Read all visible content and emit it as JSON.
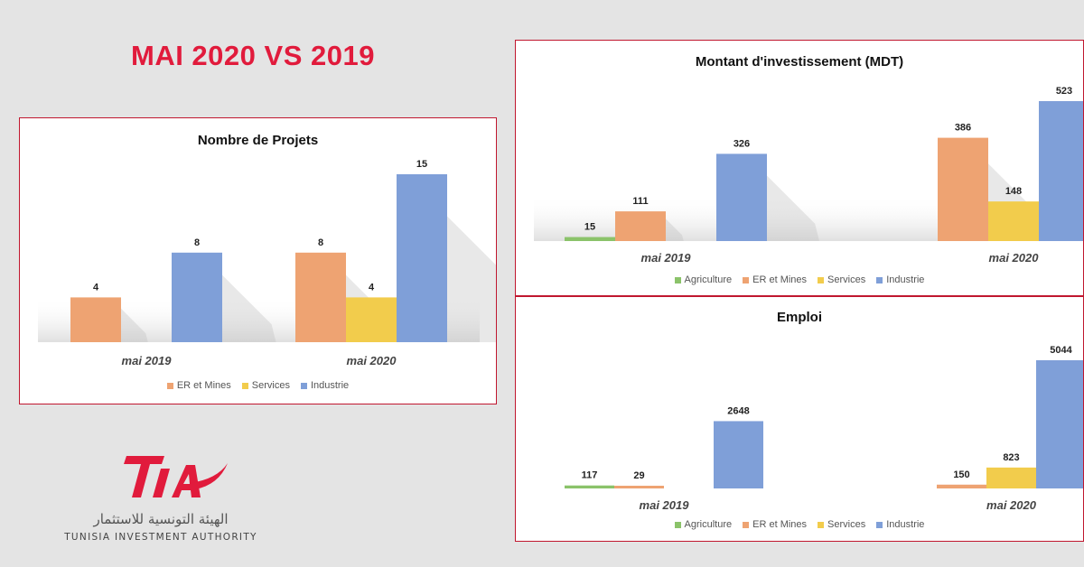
{
  "headline": "MAI 2020 VS 2019",
  "logo": {
    "mark": "TIA",
    "arabic": "الهيئة التونسية للاستثمار",
    "english": "TUNISIA INVESTMENT AUTHORITY",
    "mark_color": "#e11b3c"
  },
  "colors": {
    "Agriculture": "#8bc36a",
    "ER et Mines": "#eea372",
    "Services": "#f2cc4c",
    "Industrie": "#7f9fd8"
  },
  "chart_data": [
    {
      "type": "bar",
      "title": "Nombre de Projets",
      "categories": [
        "mai 2019",
        "mai 2020"
      ],
      "series": [
        {
          "name": "ER et Mines",
          "values": [
            4,
            8
          ]
        },
        {
          "name": "Services",
          "values": [
            null,
            4
          ]
        },
        {
          "name": "Industrie",
          "values": [
            8,
            15
          ]
        }
      ],
      "ylim": [
        0,
        15
      ],
      "grid": false,
      "legend": "bottom",
      "legend_entries": [
        "ER et Mines",
        "Services",
        "Industrie"
      ]
    },
    {
      "type": "bar",
      "title": "Montant d'investissement (MDT)",
      "categories": [
        "mai 2019",
        "mai 2020"
      ],
      "series": [
        {
          "name": "Agriculture",
          "values": [
            15,
            null
          ]
        },
        {
          "name": "ER et Mines",
          "values": [
            111,
            386
          ]
        },
        {
          "name": "Services",
          "values": [
            null,
            148
          ]
        },
        {
          "name": "Industrie",
          "values": [
            326,
            523
          ]
        }
      ],
      "ylim": [
        0,
        523
      ],
      "grid": false,
      "legend": "bottom",
      "legend_entries": [
        "Agriculture",
        "ER et Mines",
        "Services",
        "Industrie"
      ]
    },
    {
      "type": "bar",
      "title": "Emploi",
      "categories": [
        "mai 2019",
        "mai 2020"
      ],
      "series": [
        {
          "name": "Agriculture",
          "values": [
            117,
            null
          ]
        },
        {
          "name": "ER et Mines",
          "values": [
            29,
            150
          ]
        },
        {
          "name": "Services",
          "values": [
            null,
            823
          ]
        },
        {
          "name": "Industrie",
          "values": [
            2648,
            5044
          ]
        }
      ],
      "ylim": [
        0,
        5044
      ],
      "grid": false,
      "legend": "bottom",
      "legend_entries": [
        "Agriculture",
        "ER et Mines",
        "Services",
        "Industrie"
      ]
    }
  ]
}
